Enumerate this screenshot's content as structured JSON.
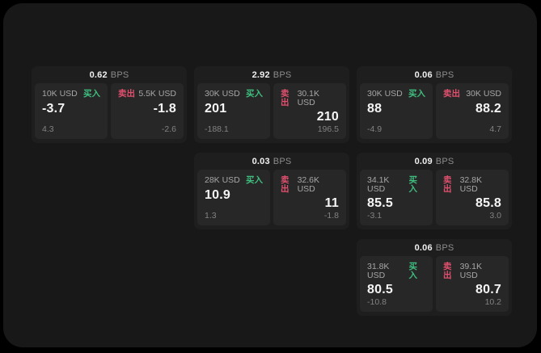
{
  "app": {
    "unit_label": "BPS",
    "buy_label": "买入",
    "sell_label": "卖出"
  },
  "colors": {
    "background": "#000000",
    "surface": "#181818",
    "card": "#1e1e1e",
    "panel": "#272727",
    "buy": "#3fbf7f",
    "sell": "#e0506e"
  },
  "cards": [
    {
      "bps": "0.62",
      "buy": {
        "size": "10K USD",
        "price": "-3.7",
        "delta": "4.3"
      },
      "sell": {
        "size": "5.5K USD",
        "price": "-1.8",
        "delta": "-2.6"
      }
    },
    {
      "bps": "2.92",
      "buy": {
        "size": "30K USD",
        "price": "201",
        "delta": "-188.1"
      },
      "sell": {
        "size": "30.1K USD",
        "price": "210",
        "delta": "196.5"
      }
    },
    {
      "bps": "0.06",
      "buy": {
        "size": "30K USD",
        "price": "88",
        "delta": "-4.9"
      },
      "sell": {
        "size": "30K USD",
        "price": "88.2",
        "delta": "4.7"
      }
    },
    {
      "bps": "0.03",
      "buy": {
        "size": "28K USD",
        "price": "10.9",
        "delta": "1.3"
      },
      "sell": {
        "size": "32.6K USD",
        "price": "11",
        "delta": "-1.8"
      }
    },
    {
      "bps": "0.09",
      "buy": {
        "size": "34.1K USD",
        "price": "85.5",
        "delta": "-3.1"
      },
      "sell": {
        "size": "32.8K USD",
        "price": "85.8",
        "delta": "3.0"
      }
    },
    {
      "bps": "0.06",
      "buy": {
        "size": "31.8K USD",
        "price": "80.5",
        "delta": "-10.8"
      },
      "sell": {
        "size": "39.1K USD",
        "price": "80.7",
        "delta": "10.2"
      }
    }
  ]
}
